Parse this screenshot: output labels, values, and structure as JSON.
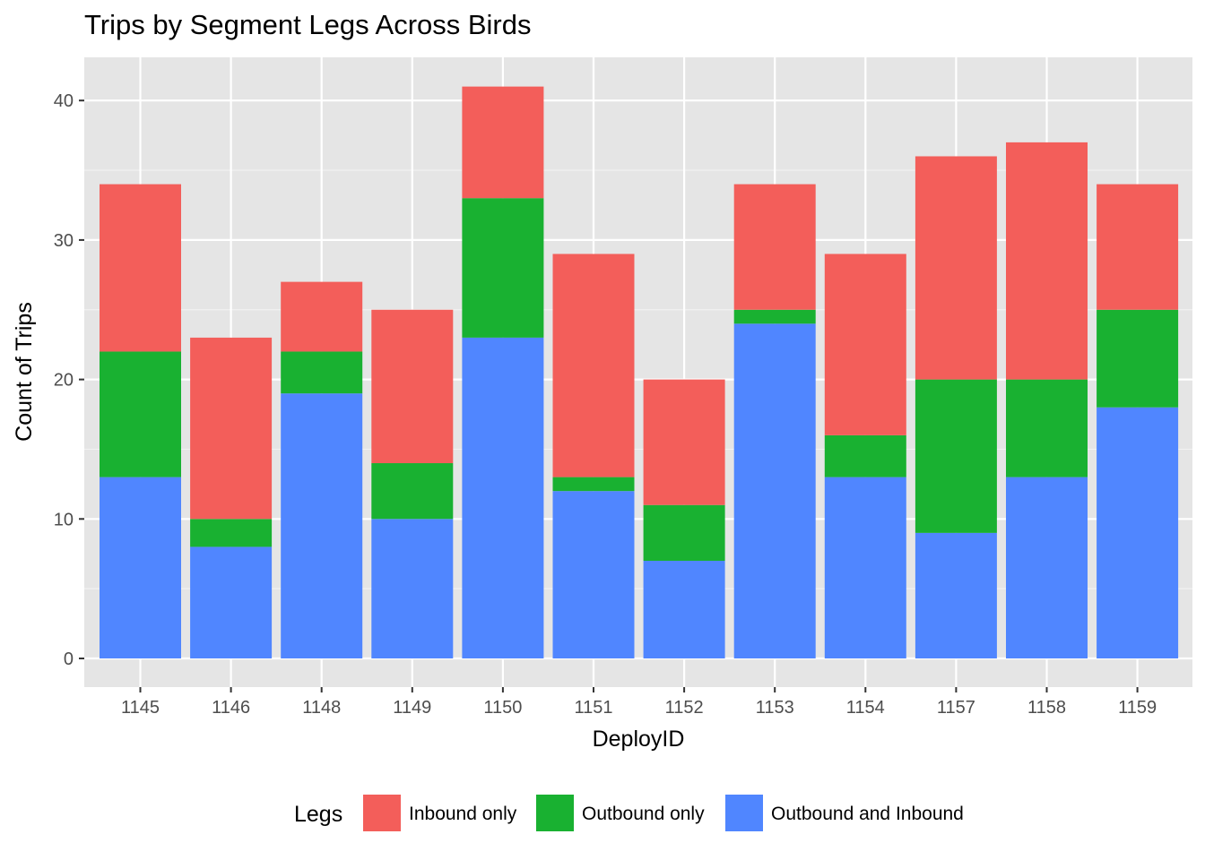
{
  "chart_data": {
    "type": "bar",
    "stacked": true,
    "title": "Trips by Segment Legs Across Birds",
    "xlabel": "DeployID",
    "ylabel": "Count of Trips",
    "ylim": [
      0,
      43
    ],
    "yticks": [
      0,
      10,
      20,
      30,
      40
    ],
    "grid": true,
    "legend_position": "bottom",
    "legend_title": "Legs",
    "categories": [
      "1145",
      "1146",
      "1148",
      "1149",
      "1150",
      "1151",
      "1152",
      "1153",
      "1154",
      "1157",
      "1158",
      "1159"
    ],
    "series": [
      {
        "name": "Inbound only",
        "color": "#F35E5A",
        "values": [
          12,
          13,
          5,
          11,
          8,
          16,
          9,
          9,
          13,
          16,
          17,
          9
        ]
      },
      {
        "name": "Outbound only",
        "color": "#19B131",
        "values": [
          9,
          2,
          3,
          4,
          10,
          1,
          4,
          1,
          3,
          11,
          7,
          7
        ]
      },
      {
        "name": "Outbound and Inbound",
        "color": "#5086FF",
        "values": [
          13,
          8,
          19,
          10,
          23,
          12,
          7,
          24,
          13,
          9,
          13,
          18
        ]
      }
    ],
    "colors": {
      "panel_background": "#E5E5E5",
      "grid_major": "#FFFFFF",
      "grid_minor": "#F2F2F2",
      "tick_text": "#4D4D4D",
      "tick_mark": "#333333"
    }
  }
}
